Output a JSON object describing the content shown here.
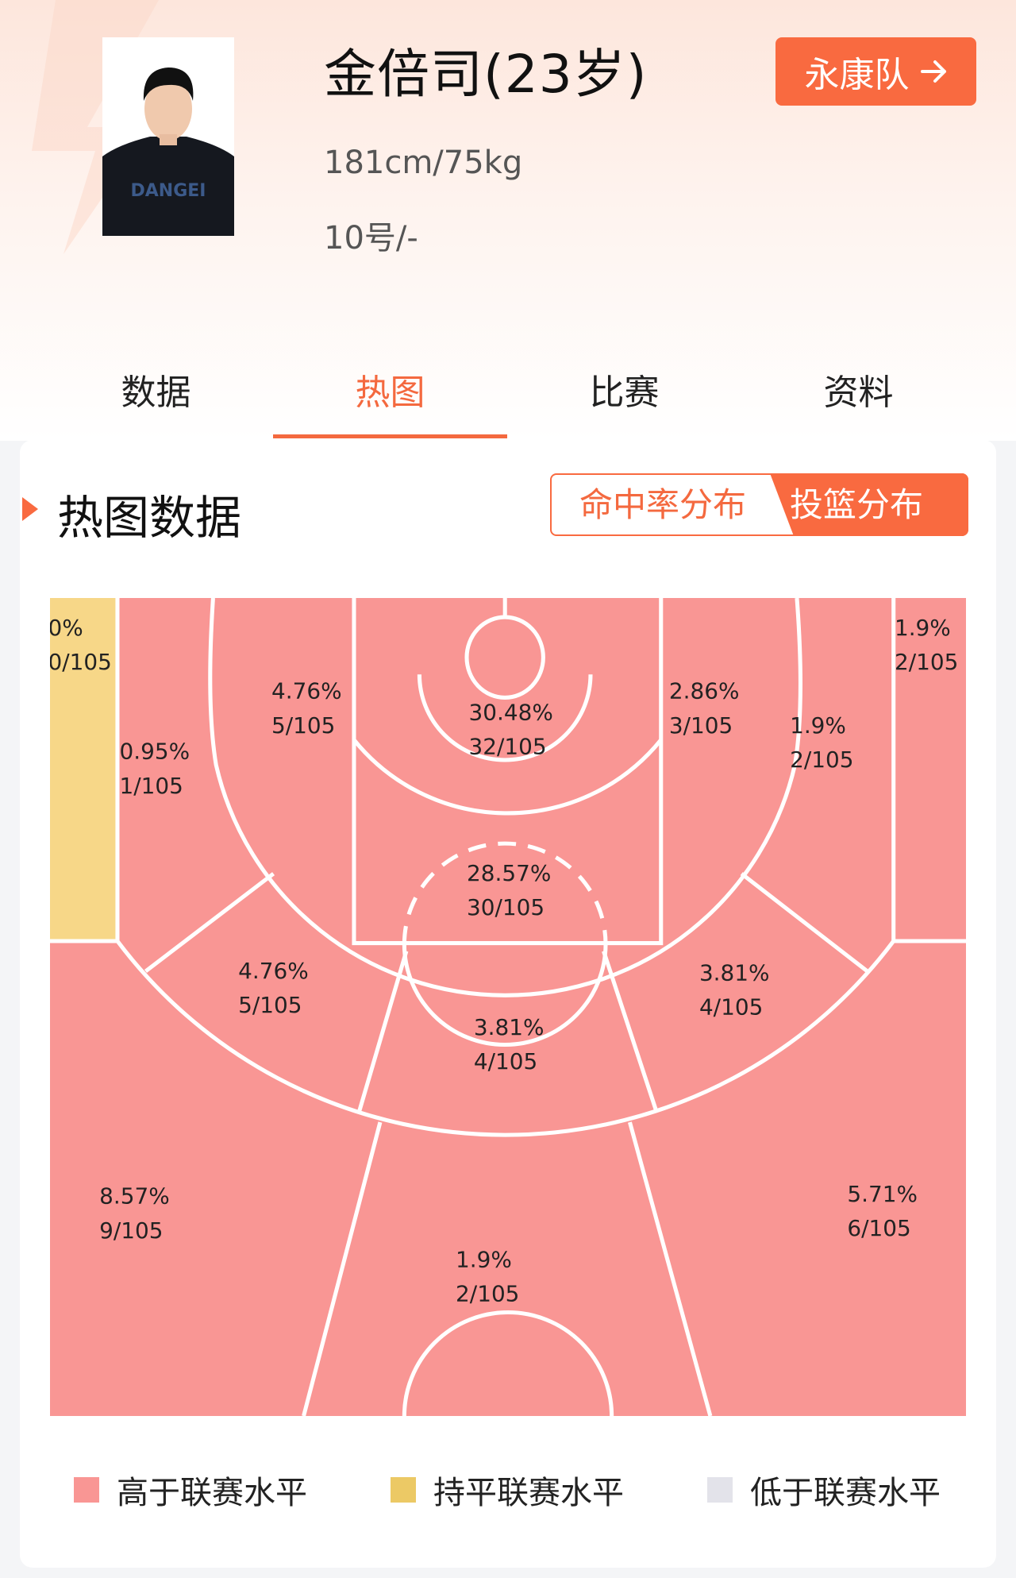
{
  "player": {
    "name": "金倍司(23岁)",
    "body": "181cm/75kg",
    "number_position": "10号/-",
    "team_button": "永康队",
    "team_arrow_icon": "arrow-right-icon"
  },
  "tabs": [
    {
      "label": "数据",
      "active": false
    },
    {
      "label": "热图",
      "active": true
    },
    {
      "label": "比赛",
      "active": false
    },
    {
      "label": "资料",
      "active": false
    }
  ],
  "section": {
    "title": "热图数据",
    "toggle": {
      "left": "命中率分布",
      "right": "投篮分布",
      "selected": "投篮分布"
    }
  },
  "colors": {
    "accent": "#f96a40",
    "above": "#f99694",
    "par": "#f7d788",
    "below": "#e3e3ea"
  },
  "chart_data": {
    "type": "heatmap",
    "title": "",
    "zones": [
      {
        "zone": "left-corner-3",
        "pct": "0%",
        "count": "0/105",
        "level": "par"
      },
      {
        "zone": "left-baseline-mid",
        "pct": "0.95%",
        "count": "1/105",
        "level": "above"
      },
      {
        "zone": "left-short-mid",
        "pct": "4.76%",
        "count": "5/105",
        "level": "above"
      },
      {
        "zone": "restricted-area",
        "pct": "30.48%",
        "count": "32/105",
        "level": "above"
      },
      {
        "zone": "paint",
        "pct": "28.57%",
        "count": "30/105",
        "level": "above"
      },
      {
        "zone": "right-short-mid",
        "pct": "2.86%",
        "count": "3/105",
        "level": "above"
      },
      {
        "zone": "right-baseline-mid",
        "pct": "1.9%",
        "count": "2/105",
        "level": "above"
      },
      {
        "zone": "right-corner-3",
        "pct": "1.9%",
        "count": "2/105",
        "level": "above"
      },
      {
        "zone": "left-elbow-mid",
        "pct": "4.76%",
        "count": "5/105",
        "level": "above"
      },
      {
        "zone": "top-key-mid",
        "pct": "3.81%",
        "count": "4/105",
        "level": "above"
      },
      {
        "zone": "right-elbow-mid",
        "pct": "3.81%",
        "count": "4/105",
        "level": "above"
      },
      {
        "zone": "left-wing-3",
        "pct": "8.57%",
        "count": "9/105",
        "level": "above"
      },
      {
        "zone": "top-3",
        "pct": "1.9%",
        "count": "2/105",
        "level": "above"
      },
      {
        "zone": "right-wing-3",
        "pct": "5.71%",
        "count": "6/105",
        "level": "above"
      }
    ],
    "legend": [
      {
        "label": "高于联赛水平",
        "color": "#f99694"
      },
      {
        "label": "持平联赛水平",
        "color": "#ecc965"
      },
      {
        "label": "低于联赛水平",
        "color": "#e3e3ea"
      }
    ]
  }
}
